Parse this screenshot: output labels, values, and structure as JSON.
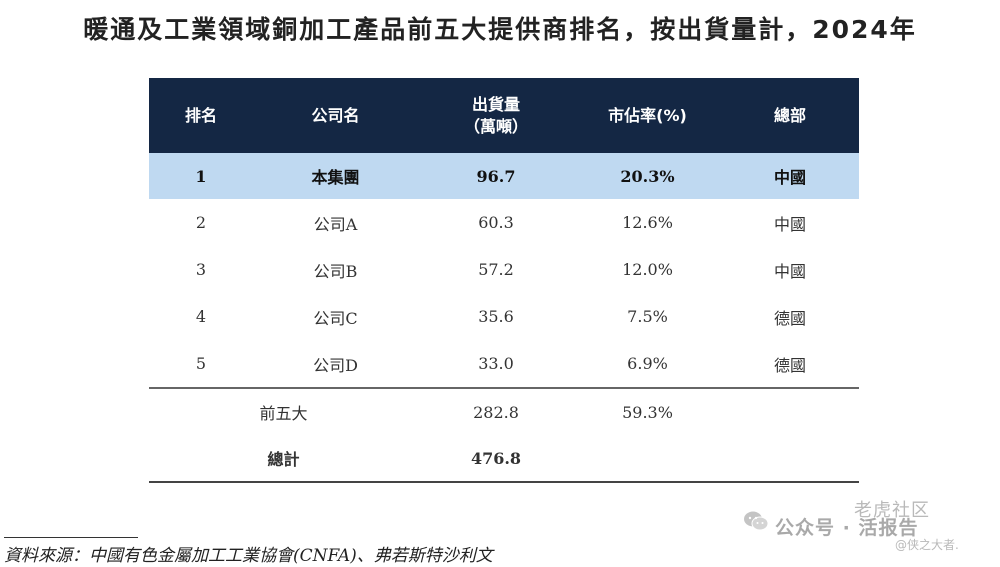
{
  "title": "暖通及工業領域銅加工產品前五大提供商排名，按出貨量計，2024年",
  "table": {
    "headers": {
      "rank": "排名",
      "company": "公司名",
      "shipment_line1": "出貨量",
      "shipment_line2": "（萬噸）",
      "share": "市佔率(%)",
      "hq": "總部"
    },
    "rows": [
      {
        "rank": "1",
        "company": "本集團",
        "shipment": "96.7",
        "share": "20.3%",
        "hq": "中國"
      },
      {
        "rank": "2",
        "company": "公司A",
        "shipment": "60.3",
        "share": "12.6%",
        "hq": "中國"
      },
      {
        "rank": "3",
        "company": "公司B",
        "shipment": "57.2",
        "share": "12.0%",
        "hq": "中國"
      },
      {
        "rank": "4",
        "company": "公司C",
        "shipment": "35.6",
        "share": "7.5%",
        "hq": "德國"
      },
      {
        "rank": "5",
        "company": "公司D",
        "shipment": "33.0",
        "share": "6.9%",
        "hq": "德國"
      }
    ],
    "top5": {
      "label": "前五大",
      "shipment": "282.8",
      "share": "59.3%"
    },
    "total": {
      "label": "總計",
      "shipment": "476.8"
    }
  },
  "source": "資料來源：中國有色金屬加工工業協會(CNFA)、弗若斯特沙利文",
  "watermark": {
    "top": "老虎社区",
    "main": "公众号 · 活报告",
    "sub": "@侠之大者.",
    "icon": "wechat-icon"
  },
  "colors": {
    "header_bg": "#142744",
    "highlight_bg": "#bfd9f1"
  }
}
